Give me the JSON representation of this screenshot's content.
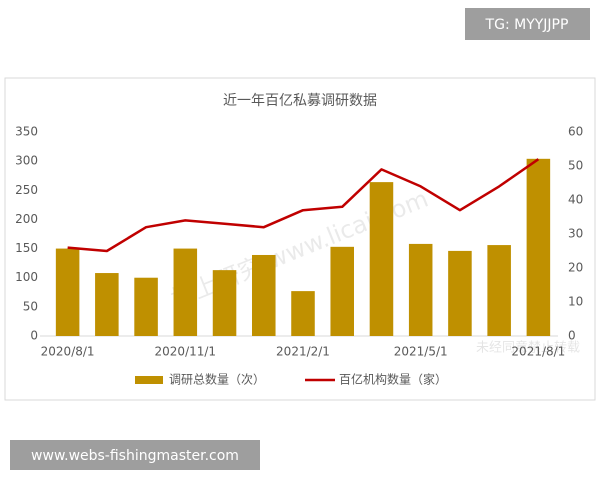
{
  "badges": {
    "top": "TG: MYYJJPP",
    "bottom": "www.webs-fishingmaster.com"
  },
  "watermarks": [
    "格上研究 www.licai.com",
    "未经同意禁止转载"
  ],
  "chart_data": {
    "type": "bar",
    "title": "近一年百亿私募调研数据",
    "categories": [
      "2020/8/1",
      null,
      null,
      "2020/11/1",
      null,
      null,
      "2021/2/1",
      null,
      null,
      "2021/5/1",
      null,
      null,
      "2021/8/1"
    ],
    "series": [
      {
        "name": "调研总数量（次）",
        "color": "#bf9000",
        "type": "bar",
        "values": [
          150,
          108,
          100,
          150,
          113,
          139,
          77,
          153,
          264,
          158,
          146,
          156,
          304
        ]
      },
      {
        "name": "百亿机构数量（家）",
        "color": "#c00000",
        "type": "line",
        "axis": "y2",
        "values": [
          26,
          25,
          32,
          34,
          33,
          32,
          37,
          38,
          49,
          44,
          37,
          44,
          52
        ]
      }
    ],
    "ylim": [
      0,
      350
    ],
    "yticks": [
      0,
      50,
      100,
      150,
      200,
      250,
      300,
      350
    ],
    "y2lim": [
      0,
      60
    ],
    "y2ticks": [
      0,
      10,
      20,
      30,
      40,
      50,
      60
    ],
    "grid": false,
    "legend": "bottom"
  }
}
